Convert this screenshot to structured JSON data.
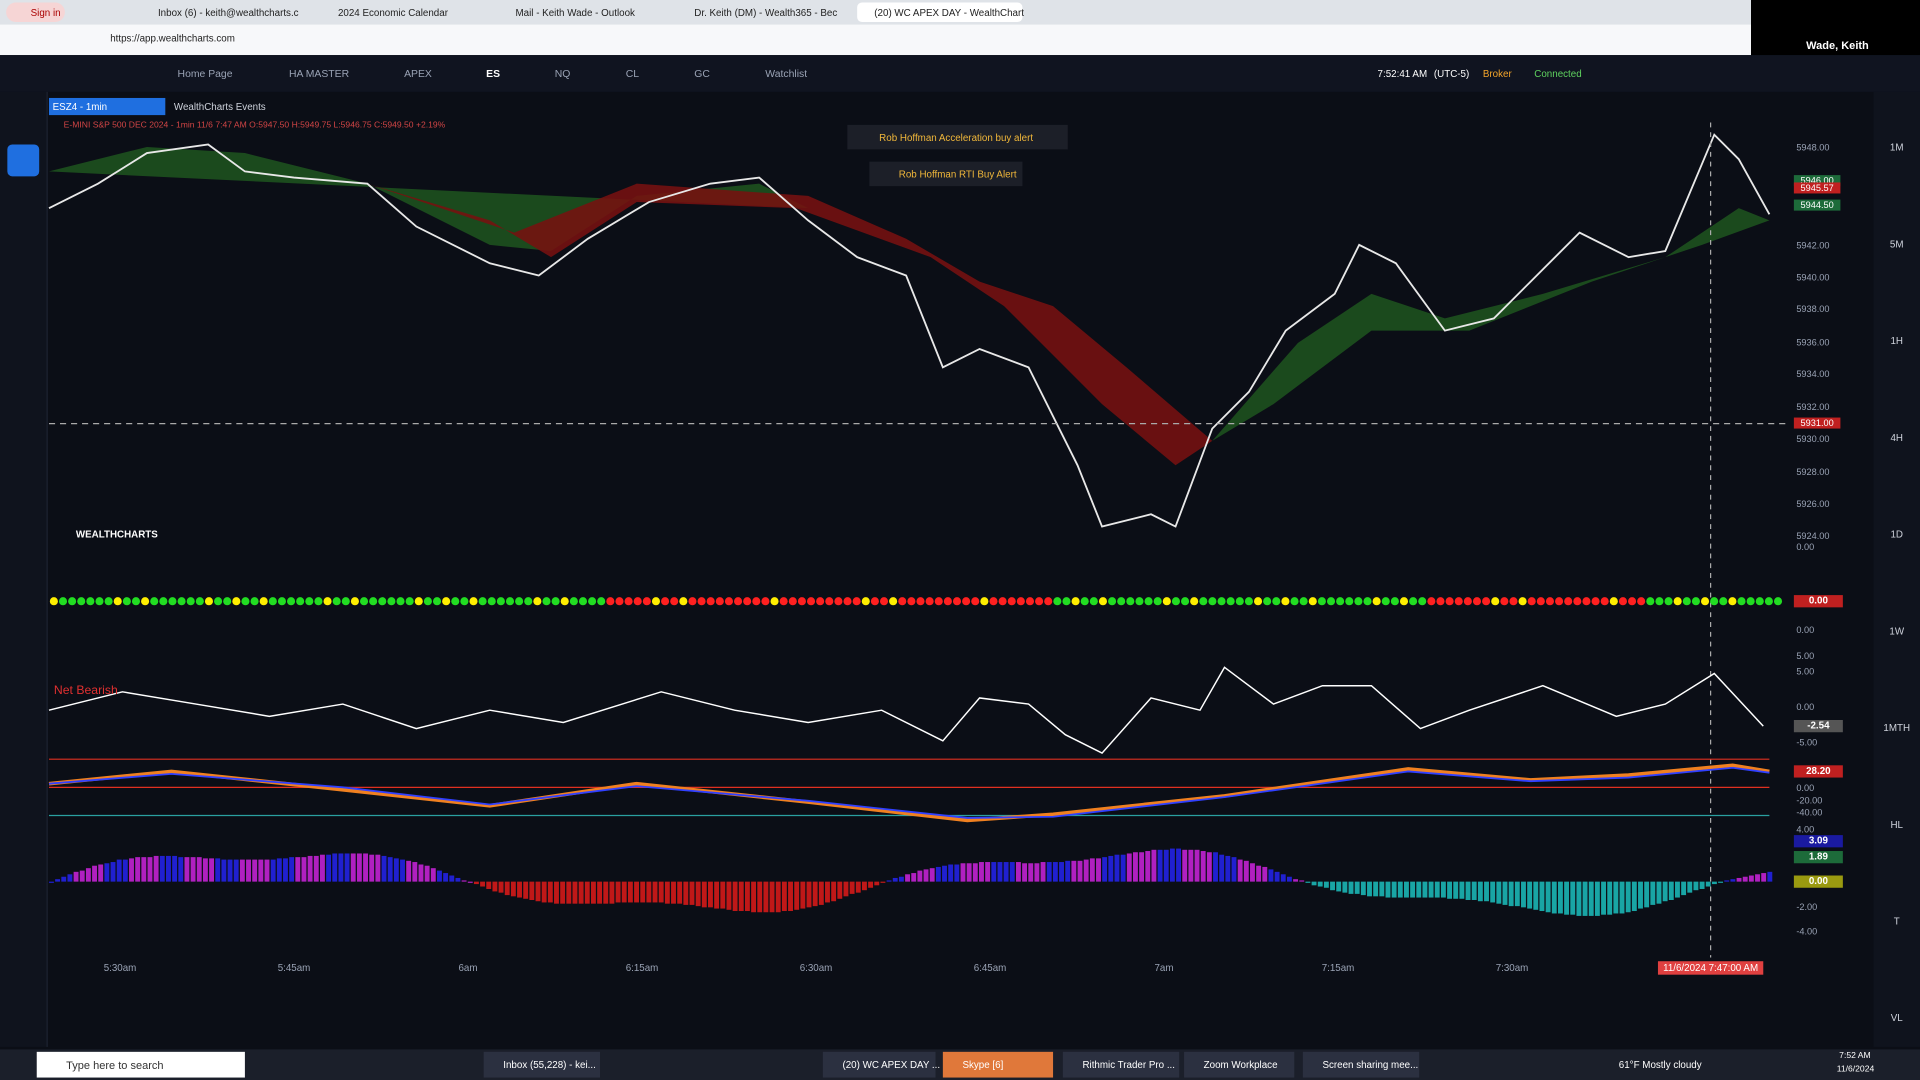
{
  "browser": {
    "tabs": [
      "Sign in",
      "Inbox (6) - keith@wealthcharts.c",
      "2024 Economic Calendar",
      "Mail - Keith Wade - Outlook",
      "Dr. Keith (DM) - Wealth365 - Bec",
      "(20) WC APEX DAY - WealthChart"
    ],
    "url": "https://app.wealthcharts.com",
    "user": "Wade, Keith"
  },
  "toolbar": {
    "tabs": [
      "Home Page",
      "HA MASTER",
      "APEX",
      "ES",
      "NQ",
      "CL",
      "GC",
      "Watchlist"
    ],
    "time": "7:52:41 AM",
    "timezone": "(UTC-5)",
    "broker": "Broker",
    "connected": "Connected"
  },
  "chart": {
    "symbol": "ESZ4 - 1min",
    "events": "WealthCharts Events",
    "legend": "E-MINI S&P 500 DEC 2024 - 1min 11/6 7:47 AM O:5947.50 H:5949.75 L:5946.75 C:5949.50 +2.19%",
    "alerts": [
      "Rob Hoffman Acceleration buy alert",
      "Rob Hoffman RTI Buy Alert"
    ],
    "price_ticks": [
      "5948.00",
      "5942.00",
      "5940.00",
      "5938.00",
      "5936.00",
      "5934.00",
      "5932.00",
      "5930.00",
      "5928.00",
      "5926.00",
      "5924.00"
    ],
    "price_badges": [
      "5946.00",
      "5945.57",
      "5944.50",
      "5931.00"
    ],
    "logo": "WEALTHCHARTS",
    "indicator_label": "Net Bearish",
    "pane_ticks": [
      "0.00",
      "0.00",
      "5.00",
      "5.00",
      "0.00",
      "-5.00",
      "0.00",
      "-20.00",
      "-40.00",
      "4.00",
      "-2.00",
      "-4.00"
    ],
    "pane_badges": [
      "0.00",
      "-2.54",
      "28.20",
      "3.09",
      "1.89",
      "0.00"
    ],
    "time_ticks": [
      "5:30am",
      "5:45am",
      "6am",
      "6:15am",
      "6:30am",
      "6:45am",
      "7am",
      "7:15am",
      "7:30am"
    ],
    "crosshair_time": "11/6/2024 7:47:00 AM",
    "timeframes": [
      "1M",
      "5M",
      "1H",
      "4H",
      "1D",
      "1W",
      "1MTH",
      "HL",
      "T",
      "VL"
    ]
  },
  "taskbar": {
    "search": "Type here to search",
    "apps": [
      "Inbox (55,228) - kei...",
      "(20) WC APEX DAY ...",
      "Skype [6]",
      "Rithmic Trader Pro ...",
      "Zoom Workplace",
      "Screen sharing mee..."
    ],
    "weather": "61°F  Mostly cloudy",
    "clock": "7:52 AM",
    "date": "11/6/2024"
  }
}
